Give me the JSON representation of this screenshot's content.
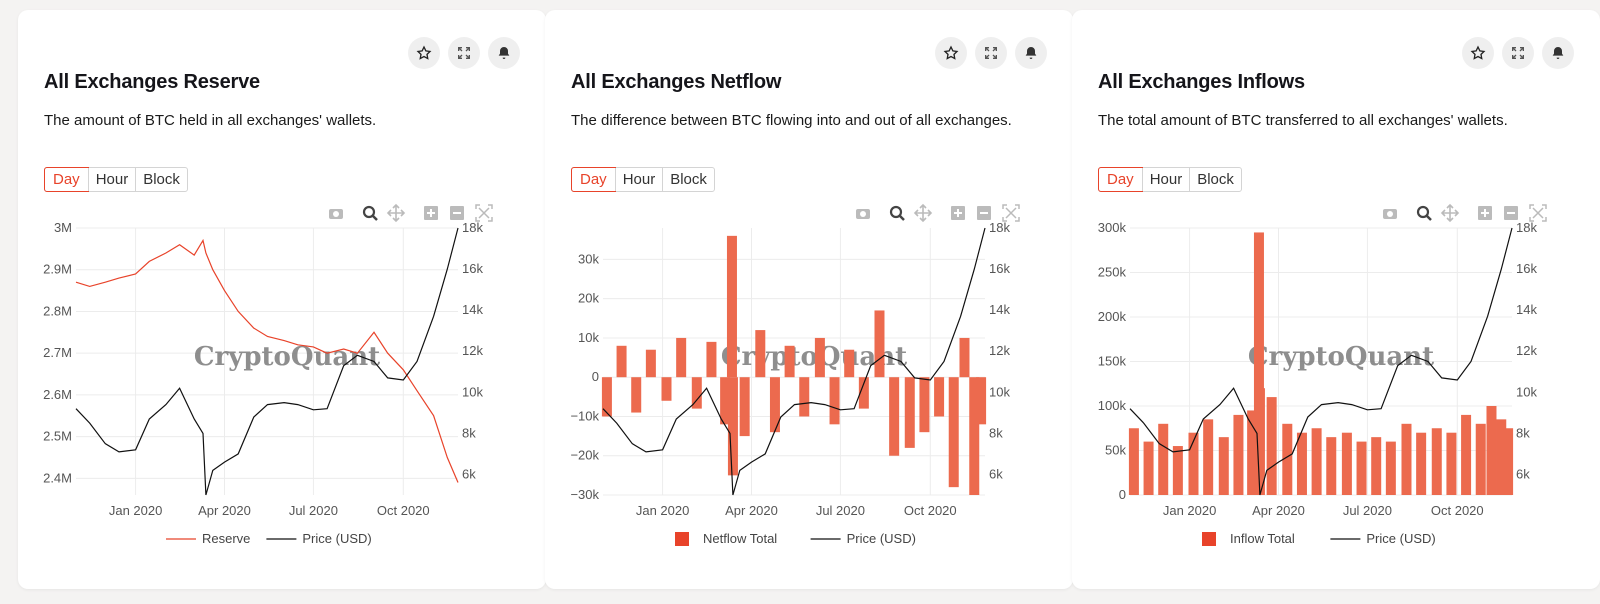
{
  "ranges": {
    "day": "Day",
    "hour": "Hour",
    "block": "Block"
  },
  "watermark": "CryptoQuant",
  "colors": {
    "accent": "#e8432a",
    "bar": "#ec6a4e",
    "price": "#111111"
  },
  "cards": [
    {
      "title": "All Exchanges Reserve",
      "description": "The amount of BTC held in all exchanges' wallets."
    },
    {
      "title": "All Exchanges Netflow",
      "description": "The difference between BTC flowing into and out of all exchanges."
    },
    {
      "title": "All Exchanges Inflows",
      "description": "The total amount of BTC transferred to all exchanges' wallets."
    }
  ],
  "chart_data": [
    {
      "type": "line",
      "x_ticks": [
        "Jan 2020",
        "Apr 2020",
        "Jul 2020",
        "Oct 2020"
      ],
      "y_left_ticks": [
        "3M",
        "2.9M",
        "2.8M",
        "2.7M",
        "2.6M",
        "2.5M",
        "2.4M"
      ],
      "y_left_range": [
        2360000,
        3000000
      ],
      "y_right_ticks": [
        "18k",
        "16k",
        "14k",
        "12k",
        "10k",
        "8k",
        "6k"
      ],
      "y_right_range": [
        5000,
        18000
      ],
      "x_range": [
        "2019-11-01",
        "2020-11-26"
      ],
      "legend": [
        "Reserve",
        "Price (USD)"
      ],
      "series": [
        {
          "name": "Reserve",
          "axis": "left",
          "style": "line",
          "x": [
            "2019-11-01",
            "2019-11-15",
            "2019-12-01",
            "2019-12-15",
            "2020-01-01",
            "2020-01-15",
            "2020-02-01",
            "2020-02-15",
            "2020-03-01",
            "2020-03-10",
            "2020-03-13",
            "2020-03-20",
            "2020-04-01",
            "2020-04-15",
            "2020-05-01",
            "2020-05-15",
            "2020-06-01",
            "2020-06-15",
            "2020-07-01",
            "2020-07-15",
            "2020-08-01",
            "2020-08-15",
            "2020-09-01",
            "2020-09-15",
            "2020-10-01",
            "2020-10-15",
            "2020-11-01",
            "2020-11-15",
            "2020-11-26"
          ],
          "values": [
            2870000,
            2860000,
            2870000,
            2880000,
            2890000,
            2920000,
            2940000,
            2960000,
            2935000,
            2970000,
            2940000,
            2900000,
            2850000,
            2800000,
            2760000,
            2740000,
            2730000,
            2720000,
            2715000,
            2700000,
            2710000,
            2700000,
            2750000,
            2700000,
            2660000,
            2610000,
            2550000,
            2450000,
            2390000
          ]
        },
        {
          "name": "Price (USD)",
          "axis": "right",
          "style": "line",
          "x": [
            "2019-11-01",
            "2019-11-15",
            "2019-12-01",
            "2019-12-15",
            "2020-01-01",
            "2020-01-15",
            "2020-02-01",
            "2020-02-15",
            "2020-03-01",
            "2020-03-10",
            "2020-03-13",
            "2020-03-20",
            "2020-04-01",
            "2020-04-15",
            "2020-05-01",
            "2020-05-15",
            "2020-06-01",
            "2020-06-15",
            "2020-07-01",
            "2020-07-15",
            "2020-08-01",
            "2020-08-15",
            "2020-09-01",
            "2020-09-15",
            "2020-10-01",
            "2020-10-15",
            "2020-11-01",
            "2020-11-15",
            "2020-11-26"
          ],
          "values": [
            9200,
            8500,
            7500,
            7100,
            7200,
            8700,
            9400,
            10200,
            8700,
            8000,
            5000,
            6200,
            6600,
            7000,
            8800,
            9400,
            9500,
            9400,
            9150,
            9200,
            11300,
            11800,
            11500,
            10700,
            10600,
            11500,
            13700,
            16000,
            18000
          ]
        }
      ]
    },
    {
      "type": "bar",
      "x_ticks": [
        "Jan 2020",
        "Apr 2020",
        "Jul 2020",
        "Oct 2020"
      ],
      "y_left_ticks": [
        "30k",
        "20k",
        "10k",
        "0",
        "−10k",
        "−20k",
        "−30k"
      ],
      "y_left_range": [
        -30000,
        38000
      ],
      "y_right_ticks": [
        "18k",
        "16k",
        "14k",
        "12k",
        "10k",
        "8k",
        "6k"
      ],
      "y_right_range": [
        5000,
        18000
      ],
      "x_range": [
        "2019-11-01",
        "2020-11-26"
      ],
      "legend": [
        "Netflow Total",
        "Price (USD)"
      ],
      "series": [
        {
          "name": "Netflow Total",
          "axis": "left",
          "style": "bar",
          "x": [
            "2019-11-05",
            "2019-11-20",
            "2019-12-05",
            "2019-12-20",
            "2020-01-05",
            "2020-01-20",
            "2020-02-05",
            "2020-02-20",
            "2020-03-05",
            "2020-03-12",
            "2020-03-13",
            "2020-03-25",
            "2020-04-10",
            "2020-04-25",
            "2020-05-10",
            "2020-05-25",
            "2020-06-10",
            "2020-06-25",
            "2020-07-10",
            "2020-07-25",
            "2020-08-10",
            "2020-08-25",
            "2020-09-10",
            "2020-09-25",
            "2020-10-10",
            "2020-10-25",
            "2020-11-05",
            "2020-11-15",
            "2020-11-22"
          ],
          "values": [
            -10000,
            8000,
            -9000,
            7000,
            -6000,
            10000,
            -8000,
            9000,
            -12000,
            36000,
            -25000,
            -15000,
            12000,
            -14000,
            8000,
            -10000,
            10000,
            -12000,
            7000,
            -8000,
            17000,
            -20000,
            -18000,
            -14000,
            -10000,
            -28000,
            10000,
            -30000,
            -12000
          ]
        },
        {
          "name": "Price (USD)",
          "axis": "right",
          "style": "line",
          "x": [
            "2019-11-01",
            "2019-11-15",
            "2019-12-01",
            "2019-12-15",
            "2020-01-01",
            "2020-01-15",
            "2020-02-01",
            "2020-02-15",
            "2020-03-01",
            "2020-03-10",
            "2020-03-13",
            "2020-03-20",
            "2020-04-01",
            "2020-04-15",
            "2020-05-01",
            "2020-05-15",
            "2020-06-01",
            "2020-06-15",
            "2020-07-01",
            "2020-07-15",
            "2020-08-01",
            "2020-08-15",
            "2020-09-01",
            "2020-09-15",
            "2020-10-01",
            "2020-10-15",
            "2020-11-01",
            "2020-11-15",
            "2020-11-26"
          ],
          "values": [
            9200,
            8500,
            7500,
            7100,
            7200,
            8700,
            9400,
            10200,
            8700,
            8000,
            5000,
            6200,
            6600,
            7000,
            8800,
            9400,
            9500,
            9400,
            9150,
            9200,
            11300,
            11800,
            11500,
            10700,
            10600,
            11500,
            13700,
            16000,
            18000
          ]
        }
      ]
    },
    {
      "type": "bar",
      "x_ticks": [
        "Jan 2020",
        "Apr 2020",
        "Jul 2020",
        "Oct 2020"
      ],
      "y_left_ticks": [
        "300k",
        "250k",
        "200k",
        "150k",
        "100k",
        "50k",
        "0"
      ],
      "y_left_range": [
        0,
        300000
      ],
      "y_right_ticks": [
        "18k",
        "16k",
        "14k",
        "12k",
        "10k",
        "8k",
        "6k"
      ],
      "y_right_range": [
        5000,
        18000
      ],
      "x_range": [
        "2019-11-01",
        "2020-11-26"
      ],
      "legend": [
        "Inflow Total",
        "Price (USD)"
      ],
      "series": [
        {
          "name": "Inflow Total",
          "axis": "left",
          "style": "bar",
          "x": [
            "2019-11-05",
            "2019-11-20",
            "2019-12-05",
            "2019-12-20",
            "2020-01-05",
            "2020-01-20",
            "2020-02-05",
            "2020-02-20",
            "2020-03-05",
            "2020-03-12",
            "2020-03-13",
            "2020-03-25",
            "2020-04-10",
            "2020-04-25",
            "2020-05-10",
            "2020-05-25",
            "2020-06-10",
            "2020-06-25",
            "2020-07-10",
            "2020-07-25",
            "2020-08-10",
            "2020-08-25",
            "2020-09-10",
            "2020-09-25",
            "2020-10-10",
            "2020-10-25",
            "2020-11-05",
            "2020-11-15",
            "2020-11-22"
          ],
          "values": [
            75000,
            60000,
            80000,
            55000,
            70000,
            85000,
            65000,
            90000,
            95000,
            295000,
            120000,
            110000,
            80000,
            70000,
            75000,
            65000,
            70000,
            60000,
            65000,
            60000,
            80000,
            70000,
            75000,
            70000,
            90000,
            80000,
            100000,
            85000,
            75000
          ]
        },
        {
          "name": "Price (USD)",
          "axis": "right",
          "style": "line",
          "x": [
            "2019-11-01",
            "2019-11-15",
            "2019-12-01",
            "2019-12-15",
            "2020-01-01",
            "2020-01-15",
            "2020-02-01",
            "2020-02-15",
            "2020-03-01",
            "2020-03-10",
            "2020-03-13",
            "2020-03-20",
            "2020-04-01",
            "2020-04-15",
            "2020-05-01",
            "2020-05-15",
            "2020-06-01",
            "2020-06-15",
            "2020-07-01",
            "2020-07-15",
            "2020-08-01",
            "2020-08-15",
            "2020-09-01",
            "2020-09-15",
            "2020-10-01",
            "2020-10-15",
            "2020-11-01",
            "2020-11-15",
            "2020-11-26"
          ],
          "values": [
            9200,
            8500,
            7500,
            7100,
            7200,
            8700,
            9400,
            10200,
            8700,
            8000,
            5000,
            6200,
            6600,
            7000,
            8800,
            9400,
            9500,
            9400,
            9150,
            9200,
            11300,
            11800,
            11500,
            10700,
            10600,
            11500,
            13700,
            16000,
            18000
          ]
        }
      ]
    }
  ]
}
